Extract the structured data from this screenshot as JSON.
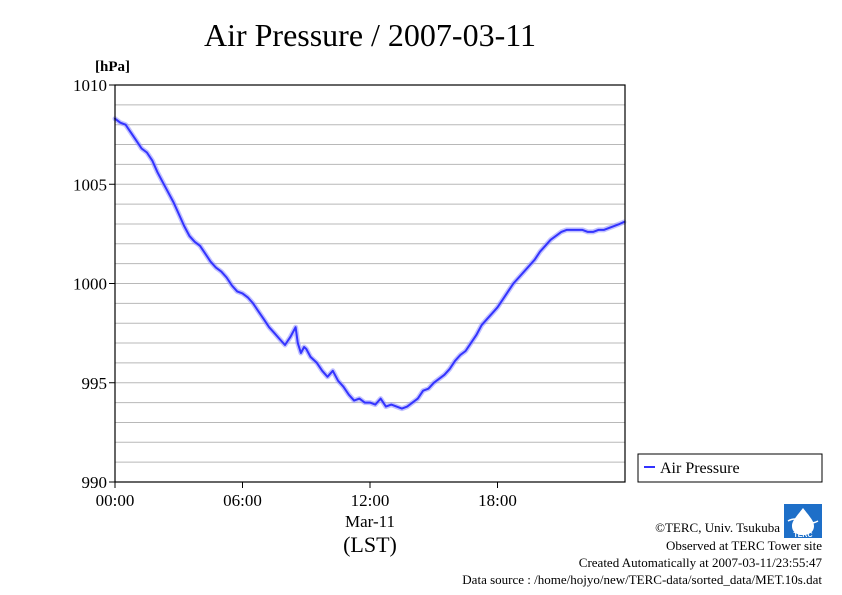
{
  "chart_data": {
    "type": "line",
    "title": "Air Pressure / 2007-03-11",
    "ylabel": "[hPa]",
    "xlabel": "(LST)",
    "date_label": "Mar-11",
    "ylim": [
      990,
      1010
    ],
    "xlim": [
      0,
      24
    ],
    "x_unit": "hours",
    "y_ticks": [
      990,
      995,
      1000,
      1005,
      1010
    ],
    "y_tick_labels": [
      "990",
      "995",
      "1000",
      "1005",
      "1010"
    ],
    "y_minor_step": 1,
    "x_ticks": [
      0,
      6,
      12,
      18
    ],
    "x_tick_labels": [
      "00:00",
      "06:00",
      "12:00",
      "18:00"
    ],
    "grid": true,
    "legend_position": "right",
    "series": [
      {
        "name": "Air Pressure",
        "color": "#3333ff",
        "x": [
          0,
          0.25,
          0.5,
          0.75,
          1.0,
          1.25,
          1.5,
          1.75,
          2.0,
          2.25,
          2.5,
          2.75,
          3.0,
          3.25,
          3.5,
          3.75,
          4.0,
          4.25,
          4.5,
          4.75,
          5.0,
          5.25,
          5.5,
          5.75,
          6.0,
          6.25,
          6.5,
          6.75,
          7.0,
          7.25,
          7.5,
          7.75,
          8.0,
          8.25,
          8.5,
          8.6,
          8.75,
          8.9,
          9.0,
          9.2,
          9.5,
          9.75,
          10.0,
          10.25,
          10.5,
          10.75,
          11.0,
          11.25,
          11.5,
          11.75,
          12.0,
          12.25,
          12.5,
          12.75,
          13.0,
          13.25,
          13.5,
          13.75,
          14.0,
          14.25,
          14.5,
          14.75,
          15.0,
          15.25,
          15.5,
          15.75,
          16.0,
          16.25,
          16.5,
          16.75,
          17.0,
          17.25,
          17.5,
          17.75,
          18.0,
          18.25,
          18.5,
          18.75,
          19.0,
          19.25,
          19.5,
          19.75,
          20.0,
          20.25,
          20.5,
          20.75,
          21.0,
          21.25,
          21.5,
          21.75,
          22.0,
          22.25,
          22.5,
          22.75,
          23.0,
          23.25,
          23.5,
          23.75,
          23.95
        ],
        "values": [
          1008.3,
          1008.1,
          1008.0,
          1007.6,
          1007.2,
          1006.8,
          1006.6,
          1006.2,
          1005.6,
          1005.1,
          1004.6,
          1004.1,
          1003.5,
          1002.9,
          1002.4,
          1002.1,
          1001.9,
          1001.5,
          1001.1,
          1000.8,
          1000.6,
          1000.3,
          999.9,
          999.6,
          999.5,
          999.3,
          999.0,
          998.6,
          998.2,
          997.8,
          997.5,
          997.2,
          996.9,
          997.3,
          997.8,
          997.0,
          996.5,
          996.8,
          996.7,
          996.3,
          996.0,
          995.6,
          995.3,
          995.6,
          995.1,
          994.8,
          994.4,
          994.1,
          994.2,
          994.0,
          994.0,
          993.9,
          994.2,
          993.8,
          993.9,
          993.8,
          993.7,
          993.8,
          994.0,
          994.2,
          994.6,
          994.7,
          995.0,
          995.2,
          995.4,
          995.7,
          996.1,
          996.4,
          996.6,
          997.0,
          997.4,
          997.9,
          998.2,
          998.5,
          998.8,
          999.2,
          999.6,
          1000.0,
          1000.3,
          1000.6,
          1000.9,
          1001.2,
          1001.6,
          1001.9,
          1002.2,
          1002.4,
          1002.6,
          1002.7,
          1002.7,
          1002.7,
          1002.7,
          1002.6,
          1002.6,
          1002.7,
          1002.7,
          1002.8,
          1002.9,
          1003.0,
          1003.1
        ]
      }
    ]
  },
  "footer": {
    "copyright": "©TERC, Univ. Tsukuba",
    "observed": "Observed at TERC Tower site",
    "created": "Created Automatically at 2007-03-11/23:55:47",
    "source": "Data source : /home/hojyo/new/TERC-data/sorted_data/MET.10s.dat",
    "logo_text": "TERC"
  }
}
